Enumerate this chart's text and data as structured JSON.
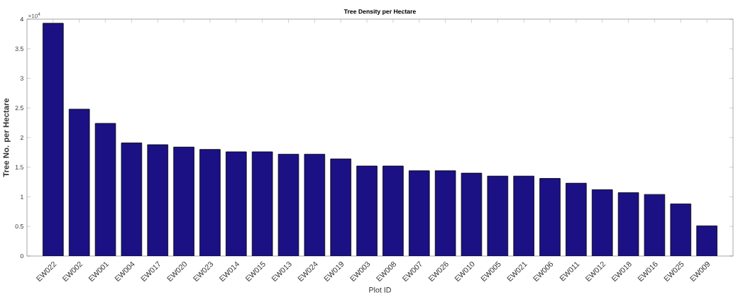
{
  "chart_data": {
    "type": "bar",
    "title": "Tree Density per Hectare",
    "xlabel": "Plot ID",
    "ylabel": "Tree No. per Hectare",
    "categories": [
      "EW022",
      "EW002",
      "EW001",
      "EW004",
      "EW017",
      "EW020",
      "EW023",
      "EW014",
      "EW015",
      "EW013",
      "EW024",
      "EW019",
      "EW003",
      "EW008",
      "EW007",
      "EW026",
      "EW010",
      "EW005",
      "EW021",
      "EW006",
      "EW011",
      "EW012",
      "EW018",
      "EW016",
      "EW025",
      "EW009"
    ],
    "values": [
      3.93,
      2.48,
      2.24,
      1.91,
      1.88,
      1.84,
      1.8,
      1.76,
      1.76,
      1.72,
      1.72,
      1.64,
      1.52,
      1.52,
      1.44,
      1.44,
      1.4,
      1.35,
      1.35,
      1.31,
      1.23,
      1.12,
      1.07,
      1.04,
      0.88,
      0.51
    ],
    "color": "#1b1185",
    "ylim": [
      0,
      4
    ],
    "yticks": [
      0,
      0.5,
      1,
      1.5,
      2,
      2.5,
      3,
      3.5,
      4
    ],
    "annotations": [
      "×10$^{4}$"
    ]
  }
}
